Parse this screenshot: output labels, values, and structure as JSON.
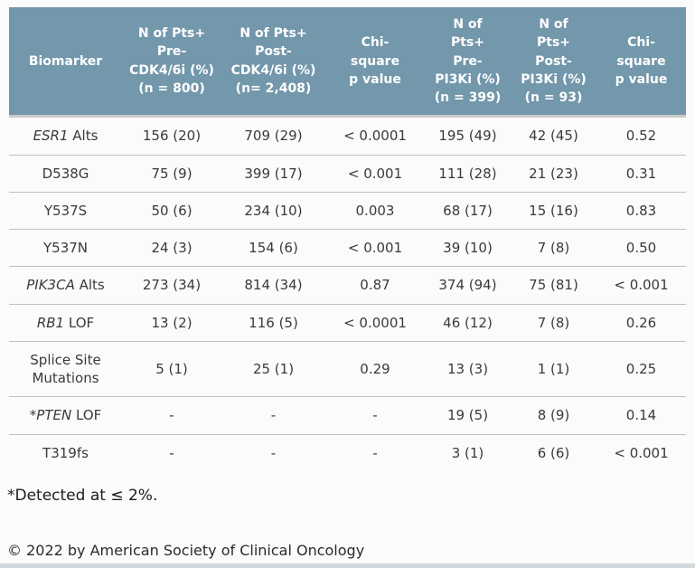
{
  "colors": {
    "header_bg": "#7397ab",
    "header_text": "#ffffff",
    "body_text": "#3a3a3a",
    "row_border": "#bfbfbf",
    "page_bg": "#fbfbfb",
    "bottom_bar": "#d2d9dd"
  },
  "table": {
    "columns": [
      {
        "lines": [
          "Biomarker"
        ],
        "width": 125
      },
      {
        "lines": [
          "N of Pts+",
          "Pre-",
          "CDK4/6i (%)",
          "(n = 800)"
        ],
        "width": 110
      },
      {
        "lines": [
          "N of Pts+",
          "Post-",
          "CDK4/6i (%)",
          "(n= 2,408)"
        ],
        "width": 115
      },
      {
        "lines": [
          "Chi-",
          "square",
          "p value"
        ],
        "width": 110
      },
      {
        "lines": [
          "N of",
          "Pts+",
          "Pre-",
          "PI3Ki (%)",
          "(n = 399)"
        ],
        "width": 95
      },
      {
        "lines": [
          "N of",
          "Pts+",
          "Post-",
          "PI3Ki (%)",
          "(n = 93)"
        ],
        "width": 95
      },
      {
        "lines": [
          "Chi-",
          "square",
          "p value"
        ],
        "width": 99
      }
    ],
    "rows": [
      {
        "biomarker_italic": "ESR1",
        "biomarker_rest": " Alts",
        "values": [
          "156 (20)",
          "709 (29)",
          "< 0.0001",
          "195 (49)",
          "42 (45)",
          "0.52"
        ]
      },
      {
        "biomarker_italic": "",
        "biomarker_rest": "D538G",
        "values": [
          "75 (9)",
          "399 (17)",
          "< 0.001",
          "111 (28)",
          "21 (23)",
          "0.31"
        ]
      },
      {
        "biomarker_italic": "",
        "biomarker_rest": "Y537S",
        "values": [
          "50 (6)",
          "234 (10)",
          "0.003",
          "68 (17)",
          "15 (16)",
          "0.83"
        ]
      },
      {
        "biomarker_italic": "",
        "biomarker_rest": "Y537N",
        "values": [
          "24 (3)",
          "154 (6)",
          "< 0.001",
          "39 (10)",
          "7 (8)",
          "0.50"
        ]
      },
      {
        "biomarker_italic": "PIK3CA",
        "biomarker_rest": " Alts",
        "values": [
          "273 (34)",
          "814 (34)",
          "0.87",
          "374 (94)",
          "75 (81)",
          "< 0.001"
        ]
      },
      {
        "biomarker_italic": "RB1",
        "biomarker_rest": " LOF",
        "values": [
          "13 (2)",
          "116 (5)",
          "< 0.0001",
          "46 (12)",
          "7 (8)",
          "0.26"
        ]
      },
      {
        "biomarker_italic": "",
        "biomarker_rest": "Splice Site Mutations",
        "values": [
          "5 (1)",
          "25 (1)",
          "0.29",
          "13 (3)",
          "1 (1)",
          "0.25"
        ]
      },
      {
        "biomarker_italic": "*PTEN",
        "biomarker_rest": " LOF",
        "values": [
          "-",
          "-",
          "-",
          "19 (5)",
          "8 (9)",
          "0.14"
        ]
      },
      {
        "biomarker_italic": "",
        "biomarker_rest": "T319fs",
        "values": [
          "-",
          "-",
          "-",
          "3 (1)",
          "6 (6)",
          "< 0.001"
        ]
      }
    ]
  },
  "footnote": "*Detected at ≤ 2%.",
  "copyright": "© 2022 by American Society of Clinical Oncology"
}
